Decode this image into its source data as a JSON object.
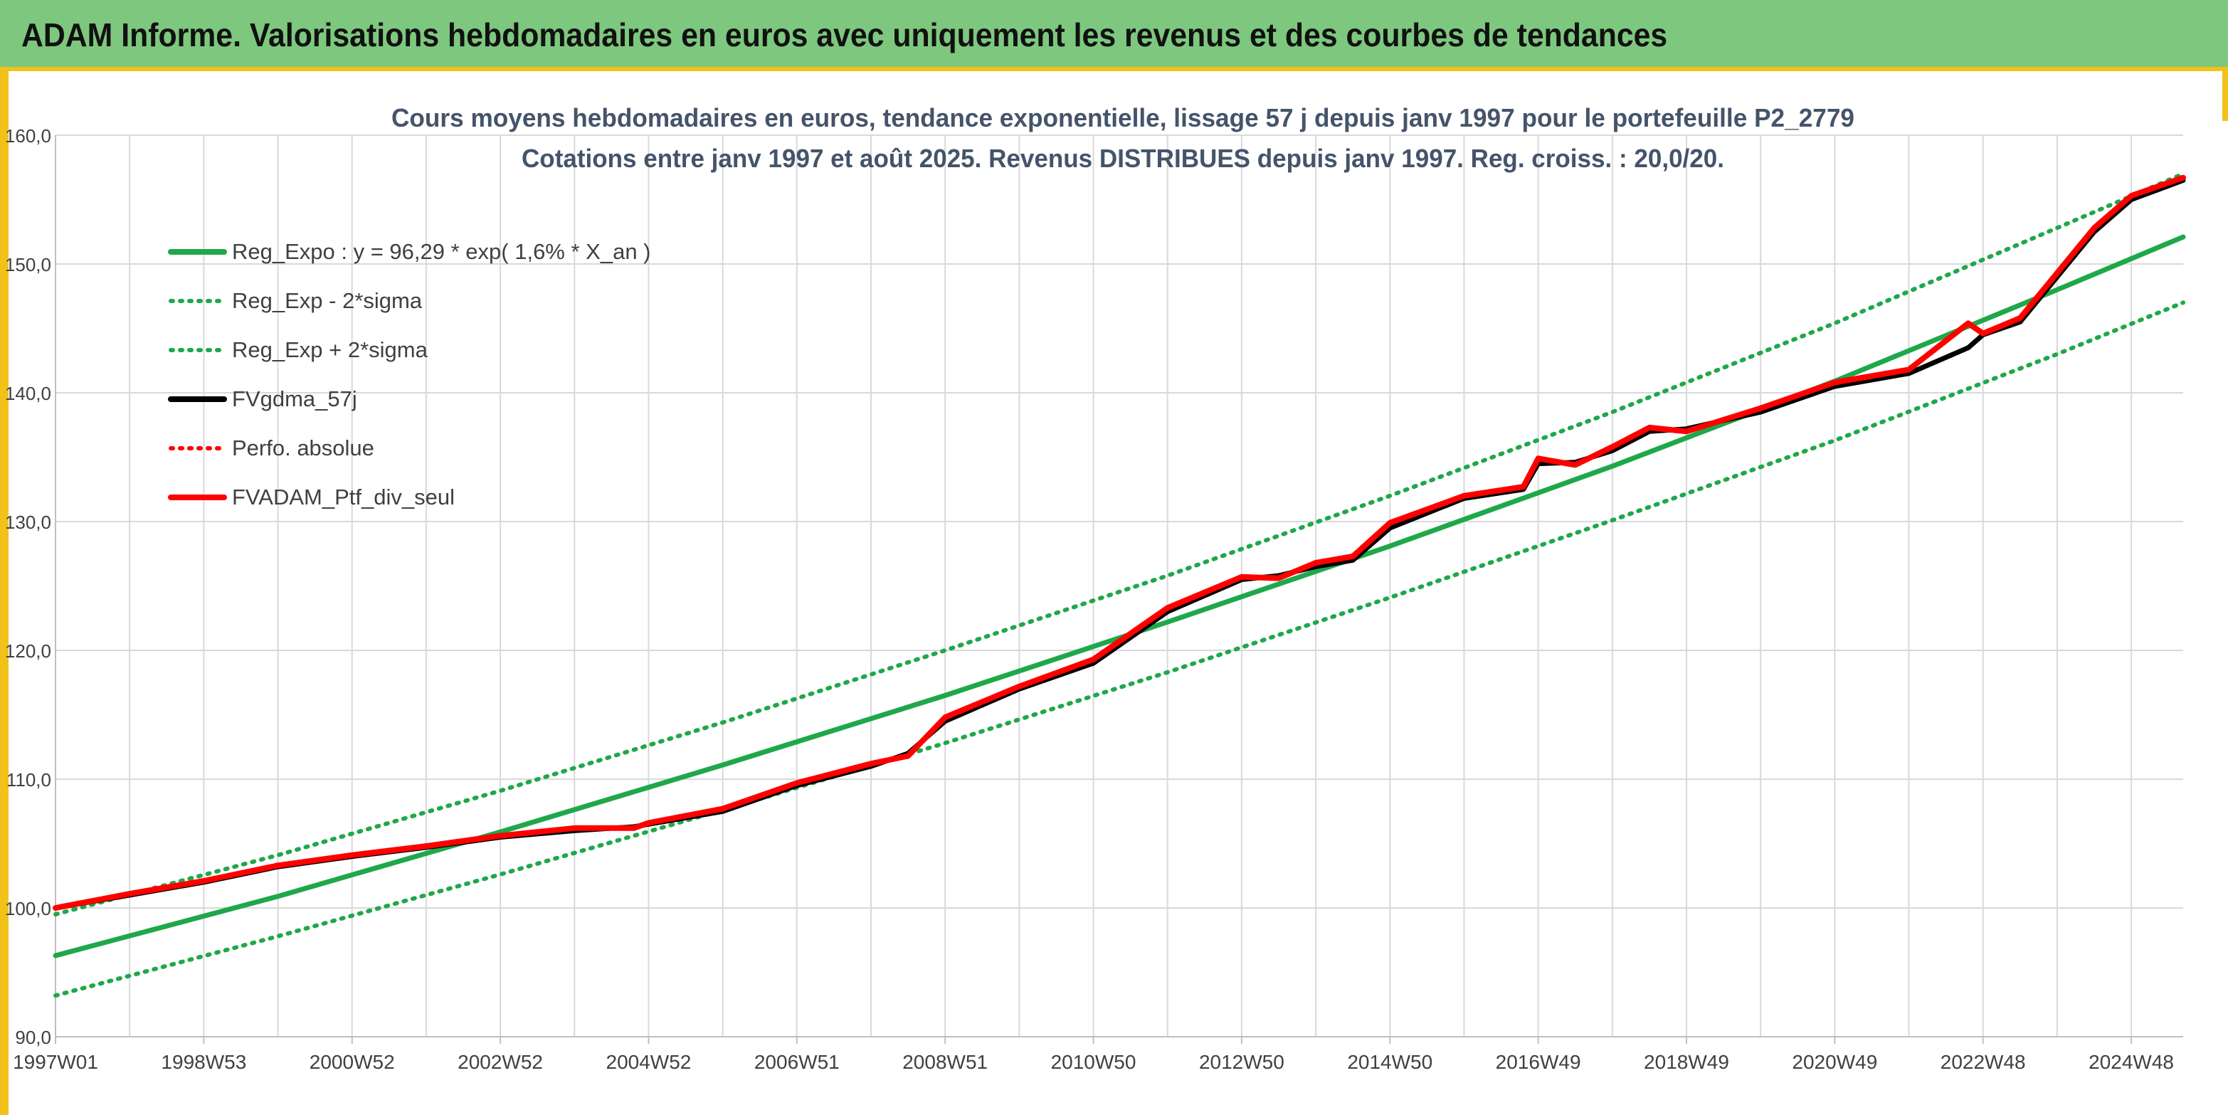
{
  "header": {
    "title": "ADAM Informe. Valorisations hebdomadaires en euros avec uniquement les revenus et des courbes de tendances"
  },
  "colors": {
    "header_bg": "#7dc87e",
    "accent_yellow": "#f2c21a",
    "reg_green": "#1fa84a",
    "fv_black": "#000000",
    "ptf_red": "#ff0000",
    "grid": "#d9d9d9"
  },
  "chart_data": {
    "type": "line",
    "title_line1": "Cours moyens hebdomadaires en euros, tendance exponentielle, lissage 57 j depuis janv 1997 pour le portefeuille P2_2779",
    "title_line2": "Cotations entre janv 1997 et août 2025. Revenus DISTRIBUES depuis janv 1997. Reg. croiss. : 20,0/20.",
    "y_ticks": [
      "90,0",
      "100,0",
      "110,0",
      "120,0",
      "130,0",
      "140,0",
      "150,0",
      "160,0"
    ],
    "ylim": [
      90,
      160
    ],
    "x_ticks": [
      "1997W01",
      "1998W53",
      "2000W52",
      "2002W52",
      "2004W52",
      "2006W51",
      "2008W51",
      "2010W50",
      "2012W50",
      "2014W50",
      "2016W49",
      "2018W49",
      "2020W49",
      "2022W48",
      "2024W48"
    ],
    "x_tick_years": [
      1997.0,
      1999.0,
      2001.0,
      2003.0,
      2005.0,
      2007.0,
      2009.0,
      2011.0,
      2013.0,
      2015.0,
      2017.0,
      2019.0,
      2021.0,
      2023.0,
      2025.0
    ],
    "xlim": [
      1997.0,
      2025.7
    ],
    "legend_position": "top-left",
    "grid": true,
    "series": [
      {
        "name": "Reg_Expo : y = 96,29 * exp( 1,6% *  X_an )",
        "style": "solid-green",
        "x": [
          1997.0,
          2000.0,
          2003.0,
          2006.0,
          2009.0,
          2012.0,
          2015.0,
          2018.0,
          2021.0,
          2024.0,
          2025.7
        ],
        "y": [
          96.3,
          100.9,
          105.9,
          111.1,
          116.5,
          122.2,
          128.1,
          134.3,
          140.9,
          148.0,
          152.1
        ]
      },
      {
        "name": "Reg_Exp - 2*sigma",
        "style": "dotted-green",
        "x": [
          1997.0,
          2000.0,
          2003.0,
          2006.0,
          2009.0,
          2012.0,
          2015.0,
          2018.0,
          2021.0,
          2024.0,
          2025.7
        ],
        "y": [
          93.2,
          97.8,
          102.6,
          107.6,
          112.8,
          118.3,
          124.1,
          130.1,
          136.3,
          143.0,
          147.0
        ]
      },
      {
        "name": "Reg_Exp + 2*sigma",
        "style": "dotted-green",
        "x": [
          1997.0,
          2000.0,
          2003.0,
          2006.0,
          2009.0,
          2012.0,
          2015.0,
          2018.0,
          2021.0,
          2024.0,
          2025.7
        ],
        "y": [
          99.5,
          104.1,
          109.1,
          114.4,
          120.0,
          125.8,
          132.0,
          138.5,
          145.4,
          152.8,
          157.0
        ]
      },
      {
        "name": "FVgdma_57j",
        "style": "solid-black",
        "x": [
          1997.0,
          1998.0,
          1999.0,
          2000.0,
          2001.0,
          2002.0,
          2003.0,
          2004.0,
          2004.8,
          2005.0,
          2006.0,
          2007.0,
          2008.0,
          2008.5,
          2009.0,
          2010.0,
          2011.0,
          2012.0,
          2013.0,
          2013.5,
          2014.0,
          2014.5,
          2015.0,
          2016.0,
          2016.8,
          2017.0,
          2017.5,
          2018.0,
          2018.5,
          2019.0,
          2020.0,
          2021.0,
          2022.0,
          2022.8,
          2023.0,
          2023.5,
          2024.0,
          2024.5,
          2025.0,
          2025.7
        ],
        "y": [
          100.0,
          101.0,
          102.0,
          103.2,
          104.0,
          104.7,
          105.5,
          106.0,
          106.3,
          106.5,
          107.5,
          109.5,
          111.0,
          112.0,
          114.5,
          117.0,
          119.0,
          123.0,
          125.5,
          125.8,
          126.5,
          127.0,
          129.5,
          131.8,
          132.5,
          134.5,
          134.6,
          135.5,
          137.0,
          137.2,
          138.5,
          140.5,
          141.5,
          143.5,
          144.5,
          145.5,
          149.0,
          152.5,
          155.0,
          156.5
        ]
      },
      {
        "name": "Perfo. absolue",
        "style": "dotted-red",
        "x": [],
        "y": []
      },
      {
        "name": "FVADAM_Ptf_div_seul",
        "style": "solid-red",
        "x": [
          1997.0,
          1998.0,
          1999.0,
          2000.0,
          2001.0,
          2002.0,
          2003.0,
          2004.0,
          2004.8,
          2005.0,
          2006.0,
          2007.0,
          2008.0,
          2008.5,
          2009.0,
          2010.0,
          2011.0,
          2012.0,
          2013.0,
          2013.5,
          2014.0,
          2014.5,
          2015.0,
          2016.0,
          2016.8,
          2017.0,
          2017.5,
          2018.0,
          2018.5,
          2019.0,
          2020.0,
          2021.0,
          2022.0,
          2022.8,
          2023.0,
          2023.5,
          2024.0,
          2024.5,
          2025.0,
          2025.7
        ],
        "y": [
          100.0,
          101.1,
          102.1,
          103.3,
          104.1,
          104.8,
          105.6,
          106.2,
          106.2,
          106.6,
          107.7,
          109.7,
          111.2,
          111.8,
          114.8,
          117.2,
          119.3,
          123.3,
          125.7,
          125.6,
          126.8,
          127.3,
          129.9,
          132.0,
          132.7,
          134.9,
          134.4,
          135.8,
          137.3,
          137.0,
          138.8,
          140.8,
          141.8,
          145.4,
          144.6,
          145.8,
          149.3,
          152.8,
          155.3,
          156.7
        ]
      }
    ]
  }
}
